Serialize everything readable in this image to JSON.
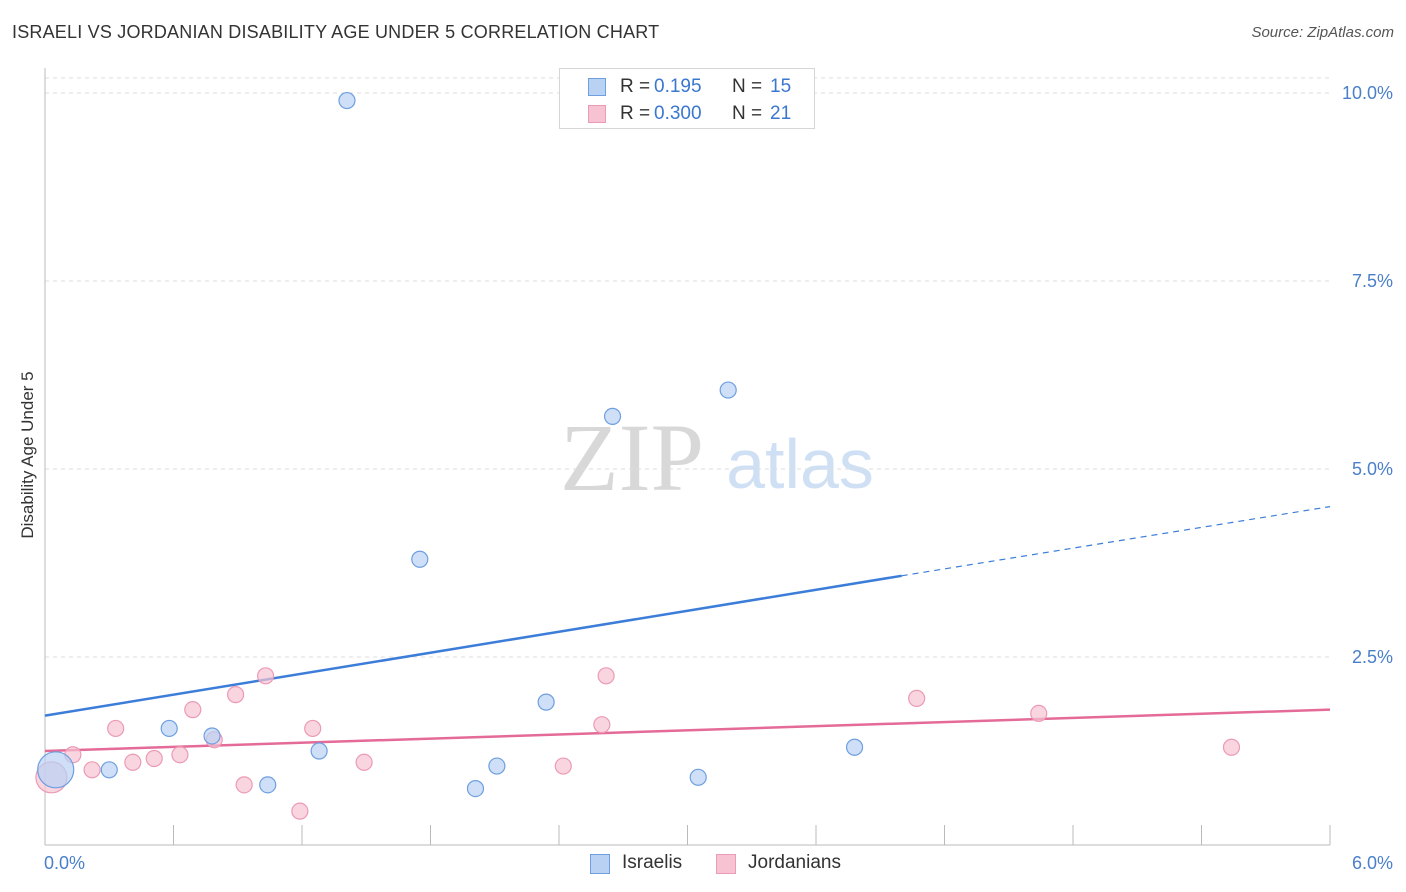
{
  "header": {
    "title": "ISRAELI VS JORDANIAN DISABILITY AGE UNDER 5 CORRELATION CHART",
    "source": "Source: ZipAtlas.com"
  },
  "watermark": {
    "zip": "ZIP",
    "atlas": "atlas"
  },
  "colors": {
    "blue": "#3b7dd8",
    "blue_fill": "#b9d2f3",
    "pink": "#e46a97",
    "pink_fill": "#f7c3d3",
    "grid": "#dddddd",
    "tick_text": "#4a7fc9"
  },
  "legend_top": {
    "rows": [
      {
        "r_label": "R =",
        "r_value": "0.195",
        "n_label": "N =",
        "n_value": "15"
      },
      {
        "r_label": "R =",
        "r_value": "0.300",
        "n_label": "N =",
        "n_value": "21"
      }
    ]
  },
  "legend_bottom": {
    "items": [
      "Israelis",
      "Jordanians"
    ]
  },
  "chart_data": {
    "type": "scatter",
    "title": "ISRAELI VS JORDANIAN DISABILITY AGE UNDER 5 CORRELATION CHART",
    "xlabel": "",
    "ylabel": "Disability Age Under 5",
    "xlim": [
      0,
      6
    ],
    "ylim": [
      0,
      10.2
    ],
    "x_tick_labels": [
      "0.0%",
      "6.0%"
    ],
    "y_ticks": [
      2.5,
      5.0,
      7.5,
      10.0
    ],
    "y_tick_labels": [
      "2.5%",
      "5.0%",
      "7.5%",
      "10.0%"
    ],
    "grid": true,
    "series": [
      {
        "name": "Israelis",
        "color": "#3b7dd8",
        "points": [
          {
            "x": 0.05,
            "y": 1.0,
            "size": 4
          },
          {
            "x": 0.3,
            "y": 1.0,
            "size": 1
          },
          {
            "x": 0.58,
            "y": 1.55,
            "size": 1
          },
          {
            "x": 0.78,
            "y": 1.45,
            "size": 1
          },
          {
            "x": 1.04,
            "y": 0.8,
            "size": 1
          },
          {
            "x": 1.28,
            "y": 1.25,
            "size": 1
          },
          {
            "x": 1.41,
            "y": 9.9,
            "size": 1
          },
          {
            "x": 1.75,
            "y": 3.8,
            "size": 1
          },
          {
            "x": 2.01,
            "y": 0.75,
            "size": 1
          },
          {
            "x": 2.11,
            "y": 1.05,
            "size": 1
          },
          {
            "x": 2.34,
            "y": 1.9,
            "size": 1
          },
          {
            "x": 2.65,
            "y": 5.7,
            "size": 1
          },
          {
            "x": 3.05,
            "y": 0.9,
            "size": 1
          },
          {
            "x": 3.19,
            "y": 6.05,
            "size": 1
          },
          {
            "x": 3.78,
            "y": 1.3,
            "size": 1
          }
        ],
        "trend": {
          "x0": 0,
          "y0": 1.72,
          "x1": 4.0,
          "y1": 3.58,
          "dashed_to_x": 6.0,
          "dashed_to_y": 4.5
        }
      },
      {
        "name": "Jordanians",
        "color": "#e46a97",
        "points": [
          {
            "x": 0.03,
            "y": 0.9,
            "size": 3
          },
          {
            "x": 0.13,
            "y": 1.2,
            "size": 1
          },
          {
            "x": 0.22,
            "y": 1.0,
            "size": 1
          },
          {
            "x": 0.33,
            "y": 1.55,
            "size": 1
          },
          {
            "x": 0.41,
            "y": 1.1,
            "size": 1
          },
          {
            "x": 0.51,
            "y": 1.15,
            "size": 1
          },
          {
            "x": 0.63,
            "y": 1.2,
            "size": 1
          },
          {
            "x": 0.69,
            "y": 1.8,
            "size": 1
          },
          {
            "x": 0.79,
            "y": 1.4,
            "size": 1
          },
          {
            "x": 0.89,
            "y": 2.0,
            "size": 1
          },
          {
            "x": 0.93,
            "y": 0.8,
            "size": 1
          },
          {
            "x": 1.03,
            "y": 2.25,
            "size": 1
          },
          {
            "x": 1.19,
            "y": 0.45,
            "size": 1
          },
          {
            "x": 1.25,
            "y": 1.55,
            "size": 1
          },
          {
            "x": 1.49,
            "y": 1.1,
            "size": 1
          },
          {
            "x": 2.42,
            "y": 1.05,
            "size": 1
          },
          {
            "x": 2.6,
            "y": 1.6,
            "size": 1
          },
          {
            "x": 2.62,
            "y": 2.25,
            "size": 1
          },
          {
            "x": 4.07,
            "y": 1.95,
            "size": 1
          },
          {
            "x": 4.64,
            "y": 1.75,
            "size": 1
          },
          {
            "x": 5.54,
            "y": 1.3,
            "size": 1
          }
        ],
        "trend": {
          "x0": 0,
          "y0": 1.25,
          "x1": 6.0,
          "y1": 1.8
        }
      }
    ]
  }
}
